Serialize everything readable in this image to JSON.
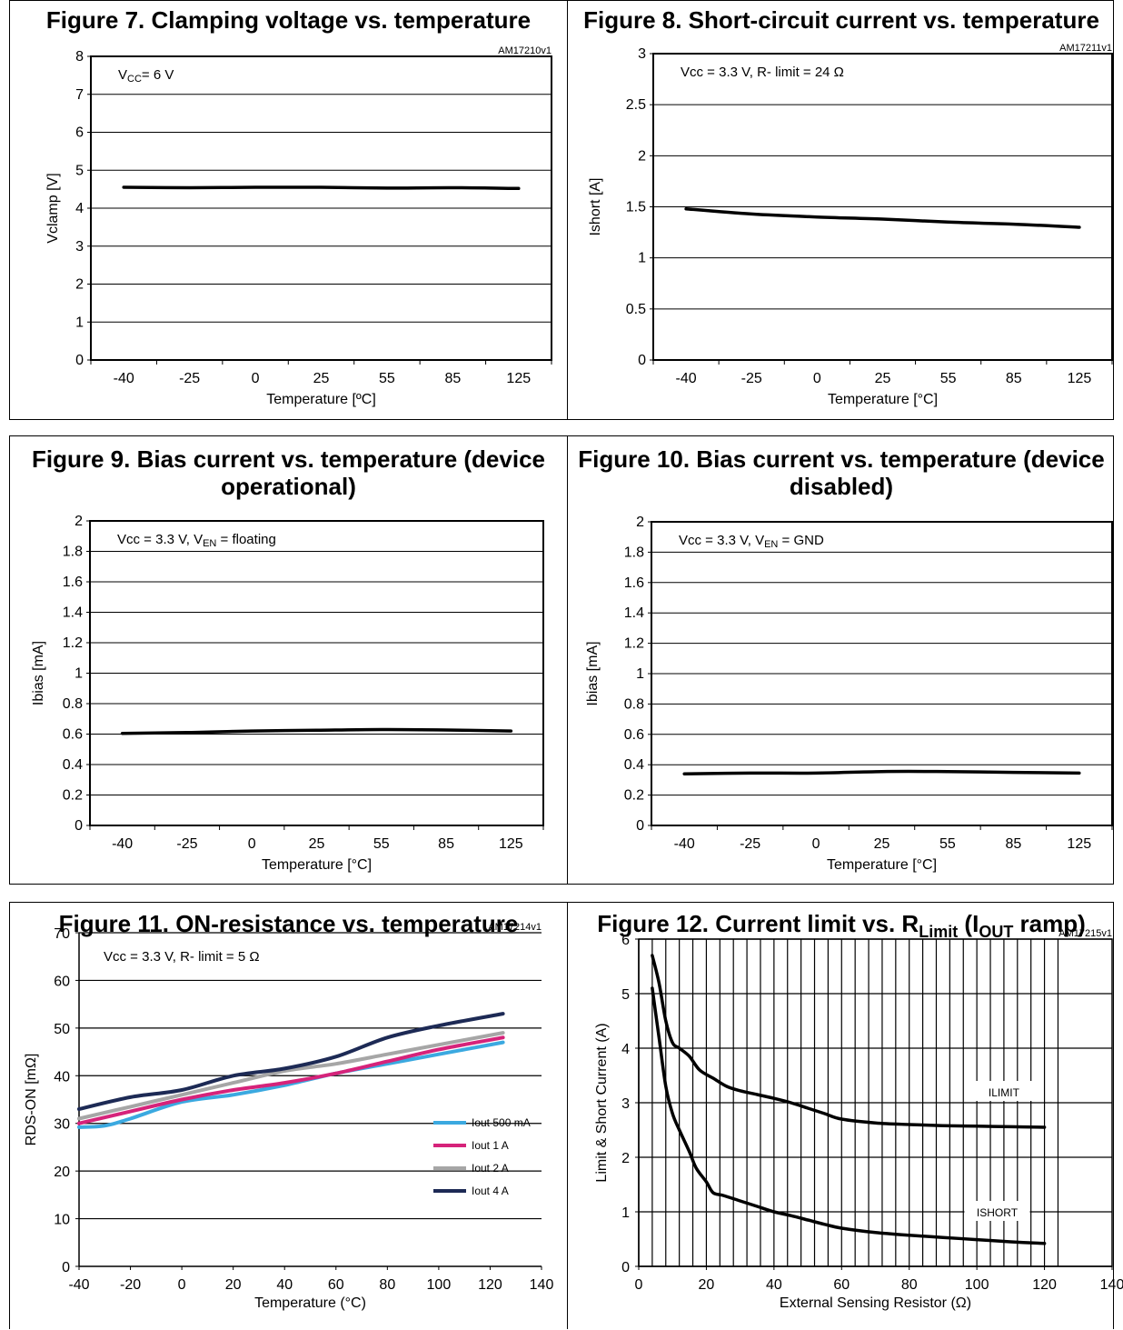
{
  "charts": [
    {
      "title": "Figure 7. Clamping voltage vs. temperature",
      "figure_id": "AM17210v1",
      "annotation": [
        "V",
        "CC",
        "= 6 V"
      ],
      "xlabel": "Temperature [ºC]",
      "ylabel": "Vclamp [V]",
      "yticks": [
        "0",
        "1",
        "2",
        "3",
        "4",
        "5",
        "6",
        "7",
        "8"
      ],
      "xticks": [
        "-40",
        "-25",
        "0",
        "25",
        "55",
        "85",
        "125"
      ]
    },
    {
      "title": "Figure 8. Short-circuit current vs. temperature",
      "figure_id": "AM17211v1",
      "annotation": [
        "Vcc = 3.3 V,  R- limit = 24 Ω"
      ],
      "xlabel": "Temperature [°C]",
      "ylabel": "Ishort  [A]",
      "yticks": [
        "0",
        "0.5",
        "1",
        "1.5",
        "2",
        "2.5",
        "3"
      ],
      "xticks": [
        "-40",
        "-25",
        "0",
        "25",
        "55",
        "85",
        "125"
      ]
    },
    {
      "title_lines": [
        "Figure 9. Bias current vs. temperature (device",
        "operational)"
      ],
      "annotation": [
        "Vcc = 3.3 V,  V",
        "EN",
        " = floating"
      ],
      "xlabel": "Temperature [°C]",
      "ylabel": "Ibias [mA]",
      "yticks": [
        "0",
        "0.2",
        "0.4",
        "0.6",
        "0.8",
        "1",
        "1.2",
        "1.4",
        "1.6",
        "1.8",
        "2"
      ],
      "xticks": [
        "-40",
        "-25",
        "0",
        "25",
        "55",
        "85",
        "125"
      ]
    },
    {
      "title_lines": [
        "Figure 10. Bias current vs. temperature (device",
        "disabled)"
      ],
      "annotation": [
        "Vcc = 3.3 V,  V",
        "EN",
        " = GND"
      ],
      "xlabel": "Temperature [°C]",
      "ylabel": "Ibias [mA]",
      "yticks": [
        "0",
        "0.2",
        "0.4",
        "0.6",
        "0.8",
        "1",
        "1.2",
        "1.4",
        "1.6",
        "1.8",
        "2"
      ],
      "xticks": [
        "-40",
        "-25",
        "0",
        "25",
        "55",
        "85",
        "125"
      ]
    },
    {
      "title": "Figure 11. ON-resistance vs. temperature",
      "figure_id": "AM17214v1",
      "annotation": [
        "Vcc = 3.3 V,  R- limit = 5 Ω"
      ],
      "xlabel": "Temperature (°C)",
      "ylabel": "RDS-ON  [mΩ]",
      "yticks": [
        "0",
        "10",
        "20",
        "30",
        "40",
        "50",
        "60",
        "70"
      ],
      "xticks": [
        "-40",
        "-20",
        "0",
        "20",
        "40",
        "60",
        "80",
        "100",
        "120",
        "140"
      ]
    },
    {
      "title_parts": [
        "Figure 12. Current limit vs. R",
        "Limit",
        " (I",
        "OUT",
        " ramp)"
      ],
      "figure_id": "AM17215v1",
      "xlabel": "External Sensing Resistor (Ω)",
      "ylabel": "Limit & Short Current (A)",
      "yticks": [
        "0",
        "1",
        "2",
        "3",
        "4",
        "5",
        "6"
      ],
      "xticks": [
        "0",
        "20",
        "40",
        "60",
        "80",
        "100",
        "120",
        "140"
      ],
      "curve_labels": [
        "ILIMIT",
        "ISHORT"
      ]
    }
  ],
  "chart_data": [
    {
      "type": "line",
      "categories": [
        "-40",
        "-25",
        "0",
        "25",
        "55",
        "85",
        "125"
      ],
      "series": [
        {
          "values": [
            4.55,
            4.54,
            4.55,
            4.55,
            4.53,
            4.54,
            4.52
          ]
        }
      ],
      "ylim": [
        0,
        8
      ]
    },
    {
      "type": "line",
      "categories": [
        "-40",
        "-25",
        "0",
        "25",
        "55",
        "85",
        "125"
      ],
      "series": [
        {
          "values": [
            1.48,
            1.43,
            1.4,
            1.38,
            1.35,
            1.33,
            1.3
          ]
        }
      ],
      "ylim": [
        0,
        3
      ]
    },
    {
      "type": "line",
      "categories": [
        "-40",
        "-25",
        "0",
        "25",
        "55",
        "85",
        "125"
      ],
      "series": [
        {
          "values": [
            0.605,
            0.61,
            0.62,
            0.625,
            0.63,
            0.627,
            0.62
          ]
        }
      ],
      "ylim": [
        0,
        2
      ]
    },
    {
      "type": "line",
      "categories": [
        "-40",
        "-25",
        "0",
        "25",
        "55",
        "85",
        "125"
      ],
      "series": [
        {
          "values": [
            0.34,
            0.345,
            0.345,
            0.355,
            0.355,
            0.35,
            0.345
          ]
        }
      ],
      "ylim": [
        0,
        2
      ]
    },
    {
      "type": "line",
      "xlim": [
        -40,
        140
      ],
      "ylim": [
        0,
        70
      ],
      "legend": "right",
      "series": [
        {
          "name": "Iout 500 mA",
          "color": "#3ba9e0",
          "x": [
            -40,
            -30,
            -20,
            0,
            20,
            40,
            60,
            80,
            100,
            125
          ],
          "y": [
            29.2,
            29.5,
            31,
            34.5,
            36,
            38,
            40.5,
            42.5,
            44.5,
            47
          ]
        },
        {
          "name": "Iout 1 A",
          "color": "#d6237a",
          "x": [
            -40,
            -20,
            0,
            20,
            40,
            60,
            80,
            100,
            125
          ],
          "y": [
            30,
            32.5,
            35,
            37,
            38.5,
            40.5,
            43,
            45.5,
            48
          ]
        },
        {
          "name": "Iout 2 A",
          "color": "#a6a6a6",
          "x": [
            -40,
            -20,
            0,
            20,
            40,
            60,
            80,
            100,
            125
          ],
          "y": [
            31,
            33.5,
            36,
            38.5,
            41,
            42.5,
            44.5,
            46.5,
            49
          ]
        },
        {
          "name": "Iout 4 A",
          "color": "#1d2a55",
          "x": [
            -40,
            -20,
            0,
            20,
            40,
            60,
            80,
            100,
            125
          ],
          "y": [
            33,
            35.5,
            37,
            40,
            41.5,
            44,
            48,
            50.5,
            53
          ]
        }
      ]
    },
    {
      "type": "line",
      "xlim": [
        0,
        140
      ],
      "ylim": [
        0,
        6
      ],
      "series": [
        {
          "name": "ILIMIT",
          "x": [
            4,
            6,
            8,
            10,
            12,
            15,
            18,
            22,
            26,
            30,
            35,
            40,
            45,
            50,
            55,
            60,
            70,
            80,
            90,
            100,
            110,
            120
          ],
          "y": [
            5.7,
            5.2,
            4.5,
            4.1,
            4.0,
            3.85,
            3.6,
            3.45,
            3.3,
            3.22,
            3.15,
            3.08,
            3.0,
            2.9,
            2.8,
            2.7,
            2.63,
            2.6,
            2.58,
            2.57,
            2.56,
            2.55
          ]
        },
        {
          "name": "ISHORT",
          "x": [
            4,
            6,
            8,
            10,
            12,
            15,
            17,
            20,
            22,
            25,
            30,
            35,
            40,
            45,
            50,
            55,
            60,
            70,
            80,
            90,
            100,
            110,
            120
          ],
          "y": [
            5.1,
            4.2,
            3.3,
            2.8,
            2.5,
            2.1,
            1.8,
            1.55,
            1.35,
            1.3,
            1.2,
            1.1,
            1.0,
            0.93,
            0.85,
            0.77,
            0.7,
            0.62,
            0.57,
            0.53,
            0.49,
            0.45,
            0.42
          ]
        }
      ]
    }
  ]
}
